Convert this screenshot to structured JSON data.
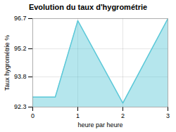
{
  "chart_data": {
    "type": "area",
    "title": "Evolution du taux d'hygrométrie",
    "xlabel": "heure par heure",
    "ylabel": "Taux hygrométrie %",
    "x": [
      0,
      0.5,
      1,
      2,
      3
    ],
    "values": [
      92.8,
      92.8,
      96.6,
      92.5,
      96.7
    ],
    "color": "#5bc8d8",
    "xlim": [
      0,
      3
    ],
    "ylim": [
      92.3,
      96.7
    ],
    "xticks": [
      0,
      1,
      2,
      3
    ],
    "yticks": [
      92.3,
      93.8,
      95.2,
      96.7
    ],
    "grid": true
  }
}
